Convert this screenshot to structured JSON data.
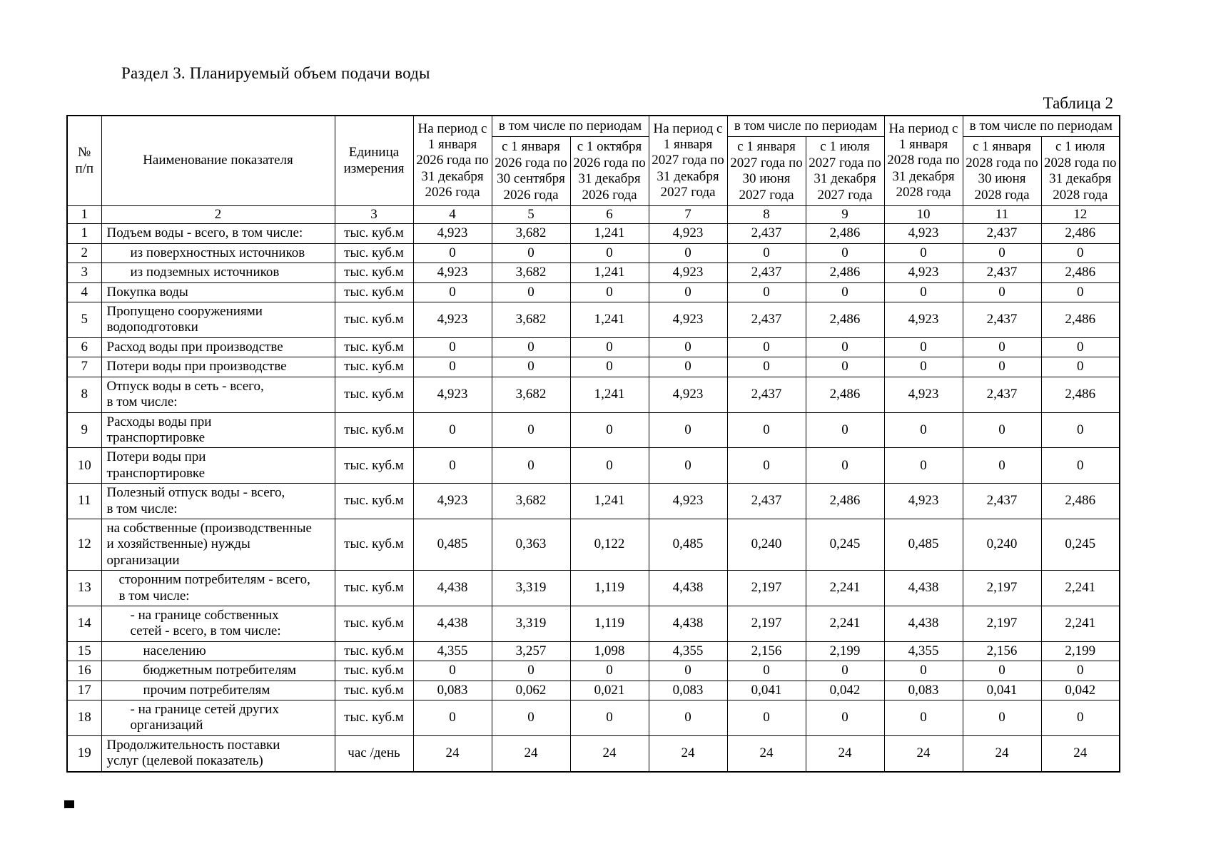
{
  "page": {
    "title": "Раздел 3. Планируемый объем подачи воды",
    "table_label": "Таблица 2"
  },
  "table": {
    "header": {
      "num": "№\nп/п",
      "indicator": "Наименование показателя",
      "unit": "Единица\nизмерения",
      "groups": [
        {
          "period": "На период с 1 января 2026 года по 31 декабря 2026 года",
          "including": "в том числе по периодам",
          "sub": [
            "с 1 января 2026 года по 30 сентября 2026 года",
            "с 1 октября 2026 года по 31 декабря 2026 года"
          ]
        },
        {
          "period": "На период с 1 января 2027 года по 31 декабря 2027 года",
          "including": "в том числе по периодам",
          "sub": [
            "с 1 января 2027 года по 30 июня 2027 года",
            "с 1 июля 2027 года по 31 декабря 2027 года"
          ]
        },
        {
          "period": "На период с 1 января 2028 года по 31 декабря 2028 года",
          "including": "в том числе по периодам",
          "sub": [
            "с 1 января 2028 года по 30 июня 2028 года",
            "с 1 июля 2028 года по 31 декабря 2028 года"
          ]
        }
      ],
      "column_numbers": [
        "1",
        "2",
        "3",
        "4",
        "5",
        "6",
        "7",
        "8",
        "9",
        "10",
        "11",
        "12"
      ]
    },
    "rows": [
      {
        "num": "1",
        "name": "Подъем воды - всего, в том числе:",
        "unit": "тыс. куб.м",
        "indent": 0,
        "values": [
          "4,923",
          "3,682",
          "1,241",
          "4,923",
          "2,437",
          "2,486",
          "4,923",
          "2,437",
          "2,486"
        ]
      },
      {
        "num": "2",
        "name": "из поверхностных источников",
        "unit": "тыс. куб.м",
        "indent": 2,
        "values": [
          "0",
          "0",
          "0",
          "0",
          "0",
          "0",
          "0",
          "0",
          "0"
        ]
      },
      {
        "num": "3",
        "name": "из подземных источников",
        "unit": "тыс. куб.м",
        "indent": 2,
        "values": [
          "4,923",
          "3,682",
          "1,241",
          "4,923",
          "2,437",
          "2,486",
          "4,923",
          "2,437",
          "2,486"
        ]
      },
      {
        "num": "4",
        "name": "Покупка воды",
        "unit": "тыс. куб.м",
        "indent": 0,
        "values": [
          "0",
          "0",
          "0",
          "0",
          "0",
          "0",
          "0",
          "0",
          "0"
        ]
      },
      {
        "num": "5",
        "name": "Пропущено сооружениями\nводоподготовки",
        "unit": "тыс. куб.м",
        "indent": 0,
        "values": [
          "4,923",
          "3,682",
          "1,241",
          "4,923",
          "2,437",
          "2,486",
          "4,923",
          "2,437",
          "2,486"
        ]
      },
      {
        "num": "6",
        "name": "Расход воды при производстве",
        "unit": "тыс. куб.м",
        "indent": 0,
        "values": [
          "0",
          "0",
          "0",
          "0",
          "0",
          "0",
          "0",
          "0",
          "0"
        ]
      },
      {
        "num": "7",
        "name": "Потери воды при производстве",
        "unit": "тыс. куб.м",
        "indent": 0,
        "values": [
          "0",
          "0",
          "0",
          "0",
          "0",
          "0",
          "0",
          "0",
          "0"
        ]
      },
      {
        "num": "8",
        "name": "Отпуск воды в сеть - всего,\nв том числе:",
        "unit": "тыс. куб.м",
        "indent": 0,
        "values": [
          "4,923",
          "3,682",
          "1,241",
          "4,923",
          "2,437",
          "2,486",
          "4,923",
          "2,437",
          "2,486"
        ]
      },
      {
        "num": "9",
        "name": "Расходы воды при\nтранспортировке",
        "unit": "тыс. куб.м",
        "indent": 0,
        "values": [
          "0",
          "0",
          "0",
          "0",
          "0",
          "0",
          "0",
          "0",
          "0"
        ]
      },
      {
        "num": "10",
        "name": "Потери воды при\nтранспортировке",
        "unit": "тыс. куб.м",
        "indent": 0,
        "values": [
          "0",
          "0",
          "0",
          "0",
          "0",
          "0",
          "0",
          "0",
          "0"
        ]
      },
      {
        "num": "11",
        "name": "Полезный отпуск воды - всего,\nв том числе:",
        "unit": "тыс. куб.м",
        "indent": 0,
        "values": [
          "4,923",
          "3,682",
          "1,241",
          "4,923",
          "2,437",
          "2,486",
          "4,923",
          "2,437",
          "2,486"
        ]
      },
      {
        "num": "12",
        "name": "на собственные (производственные\nи хозяйственные) нужды\nорганизации",
        "unit": "тыс. куб.м",
        "indent": 0,
        "values": [
          "0,485",
          "0,363",
          "0,122",
          "0,485",
          "0,240",
          "0,245",
          "0,485",
          "0,240",
          "0,245"
        ]
      },
      {
        "num": "13",
        "name": "сторонним потребителям - всего,\nв том числе:",
        "unit": "тыс. куб.м",
        "indent": 1,
        "values": [
          "4,438",
          "3,319",
          "1,119",
          "4,438",
          "2,197",
          "2,241",
          "4,438",
          "2,197",
          "2,241"
        ]
      },
      {
        "num": "14",
        "name": "- на границе собственных\nсетей - всего, в том числе:",
        "unit": "тыс. куб.м",
        "indent": 2,
        "values": [
          "4,438",
          "3,319",
          "1,119",
          "4,438",
          "2,197",
          "2,241",
          "4,438",
          "2,197",
          "2,241"
        ]
      },
      {
        "num": "15",
        "name": "населению",
        "unit": "тыс. куб.м",
        "indent": 3,
        "values": [
          "4,355",
          "3,257",
          "1,098",
          "4,355",
          "2,156",
          "2,199",
          "4,355",
          "2,156",
          "2,199"
        ]
      },
      {
        "num": "16",
        "name": "бюджетным потребителям",
        "unit": "тыс. куб.м",
        "indent": 3,
        "values": [
          "0",
          "0",
          "0",
          "0",
          "0",
          "0",
          "0",
          "0",
          "0"
        ]
      },
      {
        "num": "17",
        "name": "прочим потребителям",
        "unit": "тыс. куб.м",
        "indent": 3,
        "values": [
          "0,083",
          "0,062",
          "0,021",
          "0,083",
          "0,041",
          "0,042",
          "0,083",
          "0,041",
          "0,042"
        ]
      },
      {
        "num": "18",
        "name": "- на границе сетей других\nорганизаций",
        "unit": "тыс. куб.м",
        "indent": 2,
        "values": [
          "0",
          "0",
          "0",
          "0",
          "0",
          "0",
          "0",
          "0",
          "0"
        ]
      },
      {
        "num": "19",
        "name": "Продолжительность поставки\nуслуг (целевой показатель)",
        "unit": "час /день",
        "indent": 0,
        "values": [
          "24",
          "24",
          "24",
          "24",
          "24",
          "24",
          "24",
          "24",
          "24"
        ]
      }
    ]
  }
}
